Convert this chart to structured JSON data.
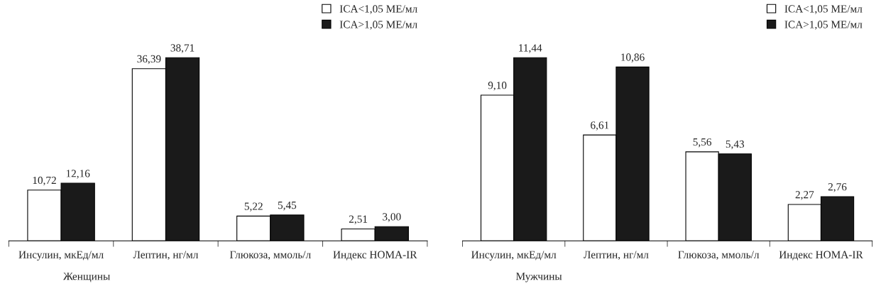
{
  "chart_data": [
    {
      "type": "bar",
      "xlabel": "Женщины",
      "categories": [
        "Инсулин, мкЕд/мл",
        "Лептин, нг/мл",
        "Глюкоза, ммоль/л",
        "Индекс HOMA-IR"
      ],
      "series": [
        {
          "name": "ICA<1,05 МЕ/мл",
          "color": "#ffffff",
          "values": [
            10.72,
            36.39,
            5.22,
            2.51
          ],
          "value_labels": [
            "10,72",
            "36,39",
            "5,22",
            "2,51"
          ]
        },
        {
          "name": "ICA>1,05 МЕ/мл",
          "color": "#1a1a1a",
          "values": [
            12.16,
            38.71,
            5.45,
            3.0
          ],
          "value_labels": [
            "12,16",
            "38,71",
            "5,45",
            "3,00"
          ]
        }
      ],
      "legend": "top right",
      "grid": false
    },
    {
      "type": "bar",
      "xlabel": "Мужчины",
      "categories": [
        "Инсулин, мкЕд/мл",
        "Лептин, нг/мл",
        "Глюкоза, ммоль/л",
        "Индекс HOMA-IR"
      ],
      "series": [
        {
          "name": "ICA<1,05 МЕ/мл",
          "color": "#ffffff",
          "values": [
            9.1,
            6.61,
            5.56,
            2.27
          ],
          "value_labels": [
            "9,10",
            "6,61",
            "5,56",
            "2,27"
          ]
        },
        {
          "name": "ICA>1,05 МЕ/мл",
          "color": "#1a1a1a",
          "values": [
            11.44,
            10.86,
            5.43,
            2.76
          ],
          "value_labels": [
            "11,44",
            "10,86",
            "5,43",
            "2,76"
          ]
        }
      ],
      "legend": "top right",
      "grid": false
    }
  ]
}
